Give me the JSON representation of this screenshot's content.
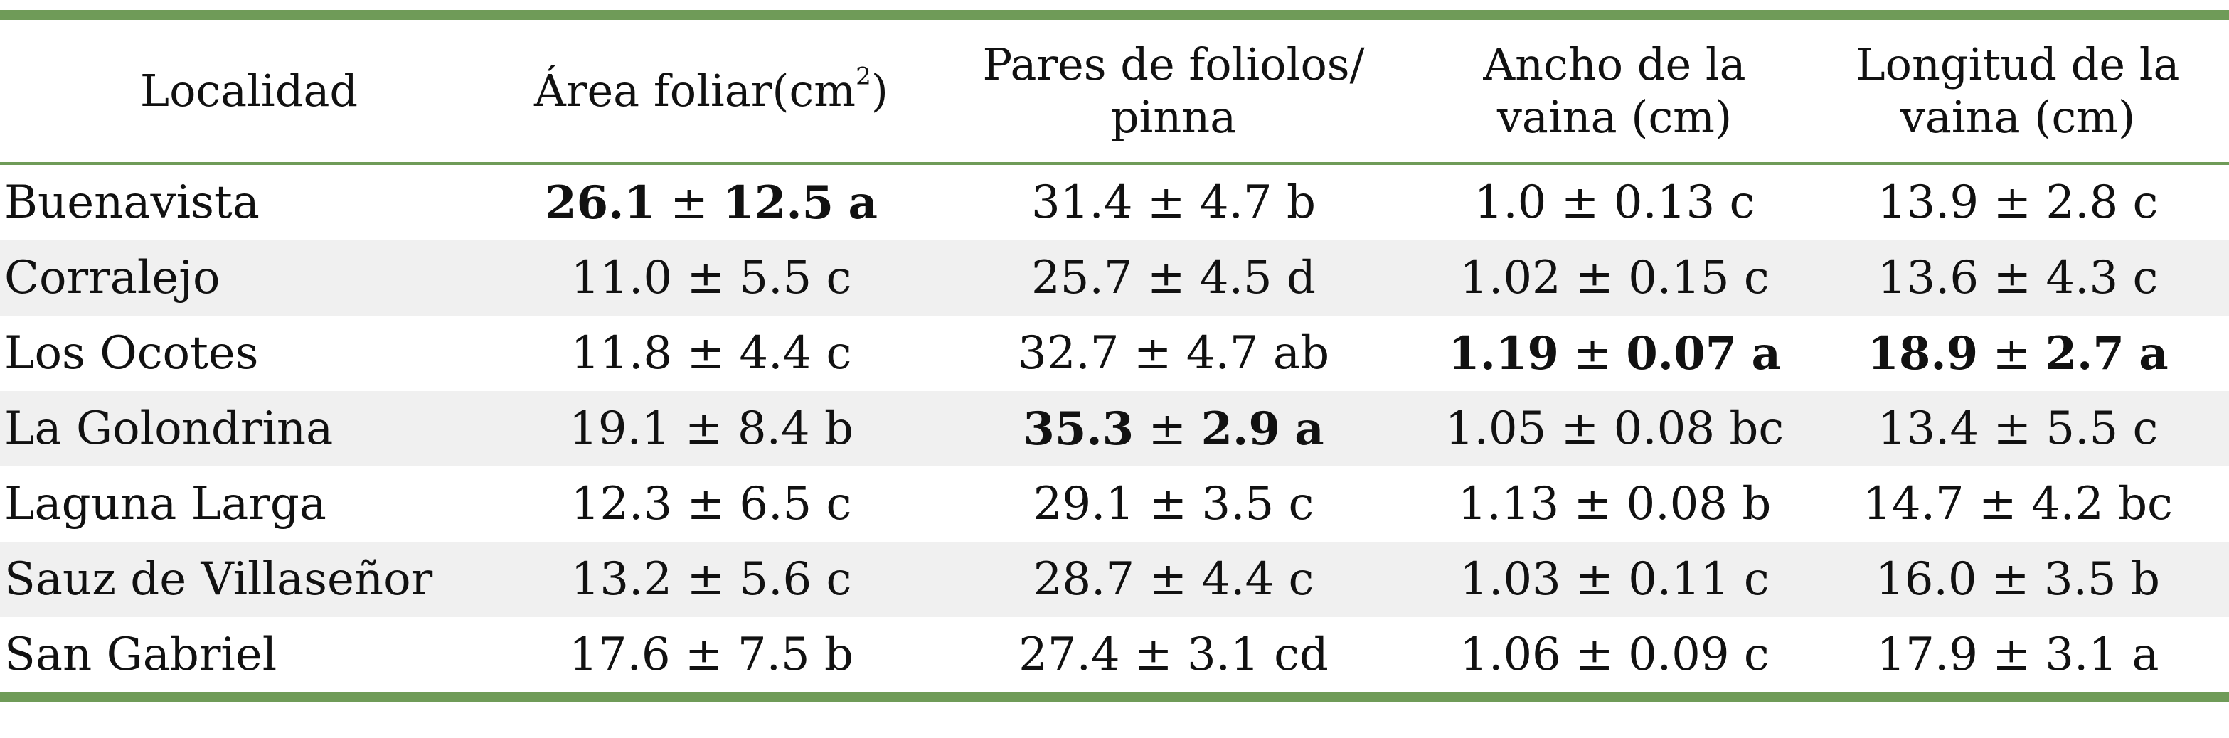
{
  "table": {
    "headers": [
      {
        "text": "Localidad"
      },
      {
        "text": "Área foliar(cm",
        "sup": "2",
        "after": ")"
      },
      {
        "text": "Pares de foliolos/\npinna"
      },
      {
        "text": "Ancho de la\nvaina (cm)"
      },
      {
        "text": "Longitud de la\nvaina (cm)"
      }
    ],
    "rows": [
      {
        "locality": "Buenavista",
        "cells": [
          {
            "mean": "26.1",
            "sd": "12.5",
            "group": "a",
            "bold": true
          },
          {
            "mean": "31.4",
            "sd": "4.7",
            "group": "b",
            "bold": false
          },
          {
            "mean": "1.0",
            "sd": "0.13",
            "group": "c",
            "bold": false
          },
          {
            "mean": "13.9",
            "sd": "2.8",
            "group": "c",
            "bold": false
          }
        ]
      },
      {
        "locality": "Corralejo",
        "cells": [
          {
            "mean": "11.0",
            "sd": "5.5",
            "group": "c",
            "bold": false
          },
          {
            "mean": "25.7",
            "sd": "4.5",
            "group": "d",
            "bold": false
          },
          {
            "mean": "1.02",
            "sd": "0.15",
            "group": "c",
            "bold": false
          },
          {
            "mean": "13.6",
            "sd": "4.3",
            "group": "c",
            "bold": false
          }
        ]
      },
      {
        "locality": "Los Ocotes",
        "cells": [
          {
            "mean": "11.8",
            "sd": "4.4",
            "group": "c",
            "bold": false
          },
          {
            "mean": "32.7",
            "sd": "4.7",
            "group": "ab",
            "bold": false
          },
          {
            "mean": "1.19",
            "sd": "0.07",
            "group": "a",
            "bold": true
          },
          {
            "mean": "18.9",
            "sd": "2.7",
            "group": "a",
            "bold": true
          }
        ]
      },
      {
        "locality": "La Golondrina",
        "cells": [
          {
            "mean": "19.1",
            "sd": "8.4",
            "group": "b",
            "bold": false
          },
          {
            "mean": "35.3",
            "sd": "2.9",
            "group": "a",
            "bold": true
          },
          {
            "mean": "1.05",
            "sd": "0.08",
            "group": "bc",
            "bold": false
          },
          {
            "mean": "13.4",
            "sd": "5.5",
            "group": "c",
            "bold": false
          }
        ]
      },
      {
        "locality": "Laguna Larga",
        "cells": [
          {
            "mean": "12.3",
            "sd": "6.5",
            "group": "c",
            "bold": false
          },
          {
            "mean": "29.1",
            "sd": "3.5",
            "group": "c",
            "bold": false
          },
          {
            "mean": "1.13",
            "sd": "0.08",
            "group": "b",
            "bold": false
          },
          {
            "mean": "14.7",
            "sd": "4.2",
            "group": "bc",
            "bold": false
          }
        ]
      },
      {
        "locality": "Sauz de Villaseñor",
        "cells": [
          {
            "mean": "13.2",
            "sd": "5.6",
            "group": "c",
            "bold": false
          },
          {
            "mean": "28.7",
            "sd": "4.4",
            "group": "c",
            "bold": false
          },
          {
            "mean": "1.03",
            "sd": "0.11",
            "group": "c",
            "bold": false
          },
          {
            "mean": "16.0",
            "sd": "3.5",
            "group": "b",
            "bold": false
          }
        ]
      },
      {
        "locality": "San Gabriel",
        "cells": [
          {
            "mean": "17.6",
            "sd": "7.5",
            "group": "b",
            "bold": false
          },
          {
            "mean": "27.4",
            "sd": "3.1",
            "group": "cd",
            "bold": false
          },
          {
            "mean": "1.06",
            "sd": "0.09",
            "group": "c",
            "bold": false
          },
          {
            "mean": "17.9",
            "sd": "3.1",
            "group": "a",
            "bold": false
          }
        ]
      }
    ],
    "pm_symbol": "±",
    "colors": {
      "rule": "#6f9b58",
      "row_shade": "#f0f0f0",
      "text": "#111111"
    }
  }
}
